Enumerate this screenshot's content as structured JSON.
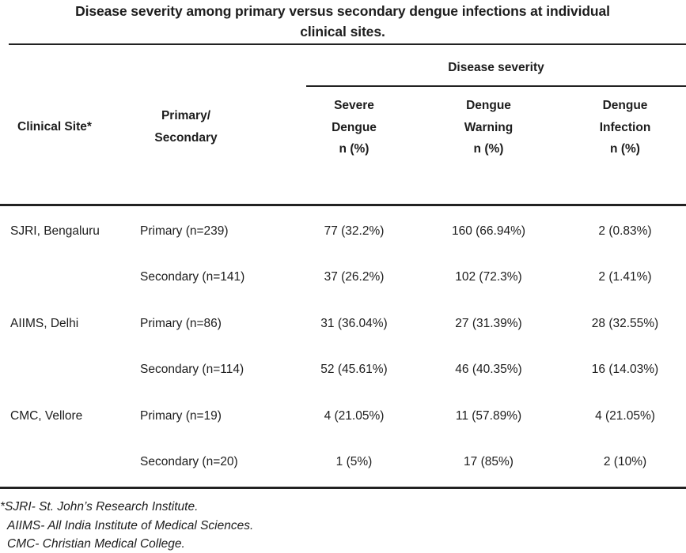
{
  "colors": {
    "background": "#ffffff",
    "text": "#1d1d1d",
    "rule": "#222222"
  },
  "title": "Disease severity among primary versus secondary dengue infections at individual\nclinical sites.",
  "table": {
    "group_header": "Disease severity",
    "columns": {
      "site": "Clinical Site*",
      "infection_type": "Primary/\nSecondary",
      "severe": "Severe\nDengue\nn (%)",
      "warning": "Dengue\nWarning\nn (%)",
      "infection": "Dengue\nInfection\nn (%)"
    },
    "rows": [
      {
        "site": "SJRI, Bengaluru",
        "group": "Primary (n=239)",
        "severe": "77 (32.2%)",
        "warning": "160 (66.94%)",
        "infection": "2 (0.83%)"
      },
      {
        "site": "",
        "group": "Secondary (n=141)",
        "severe": "37 (26.2%)",
        "warning": "102 (72.3%)",
        "infection": "2 (1.41%)"
      },
      {
        "site": "AIIMS, Delhi",
        "group": "Primary (n=86)",
        "severe": "31 (36.04%)",
        "warning": "27 (31.39%)",
        "infection": "28 (32.55%)"
      },
      {
        "site": "",
        "group": "Secondary (n=114)",
        "severe": "52 (45.61%)",
        "warning": "46 (40.35%)",
        "infection": "16 (14.03%)"
      },
      {
        "site": "CMC, Vellore",
        "group": "Primary (n=19)",
        "severe": "4 (21.05%)",
        "warning": "11 (57.89%)",
        "infection": "4 (21.05%)"
      },
      {
        "site": "",
        "group": "Secondary (n=20)",
        "severe": "1 (5%)",
        "warning": "17 (85%)",
        "infection": "2 (10%)"
      }
    ]
  },
  "footnotes": {
    "line1": "*SJRI- St. John’s Research Institute.",
    "line2": "AIIMS- All India Institute of Medical Sciences.",
    "line3": "CMC- Christian Medical College."
  }
}
